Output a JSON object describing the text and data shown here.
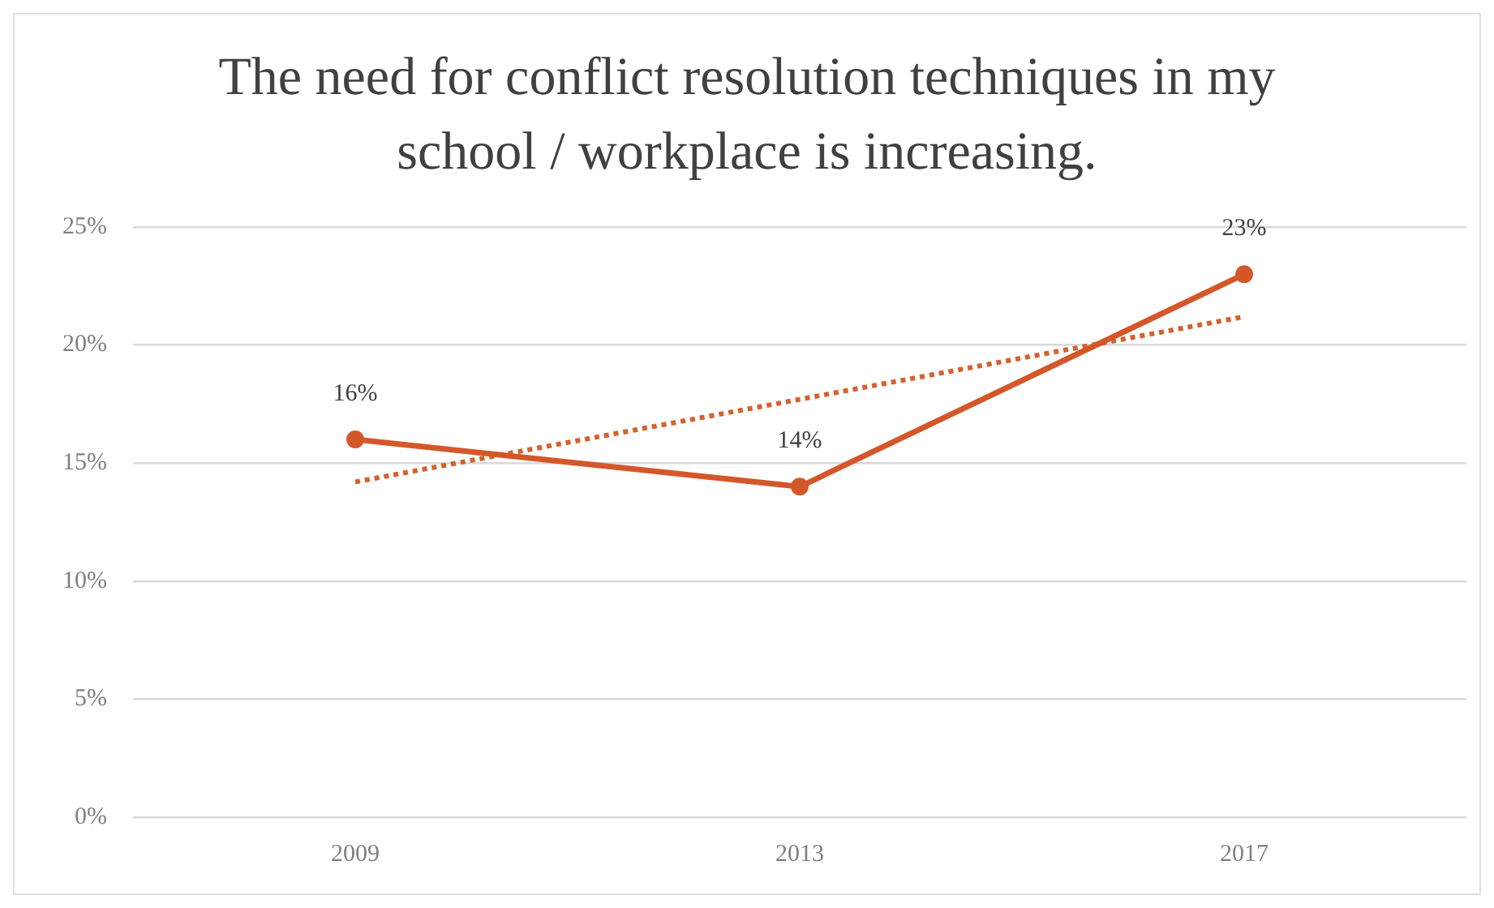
{
  "chart_data": {
    "type": "line",
    "title": "The need for conflict resolution techniques in my school / workplace is increasing.",
    "categories": [
      "2009",
      "2013",
      "2017"
    ],
    "series": [
      {
        "color": "#d4572a",
        "values": [
          16,
          14,
          23
        ],
        "value_labels": [
          "16%",
          "14%",
          "23%"
        ],
        "marker": "circle",
        "line_style": "solid"
      },
      {
        "type": "line",
        "color": "#d4622e",
        "values": [
          14.2,
          17.7,
          21.2
        ],
        "marker": "none",
        "line_style": "dotted"
      }
    ],
    "ylim": [
      0,
      25
    ],
    "yticks": [
      {
        "value": 0,
        "label": "0%"
      },
      {
        "value": 5,
        "label": "5%"
      },
      {
        "value": 10,
        "label": "10%"
      },
      {
        "value": 15,
        "label": "15%"
      },
      {
        "value": 20,
        "label": "20%"
      },
      {
        "value": 25,
        "label": "25%"
      }
    ],
    "grid": "y",
    "legend": false
  }
}
